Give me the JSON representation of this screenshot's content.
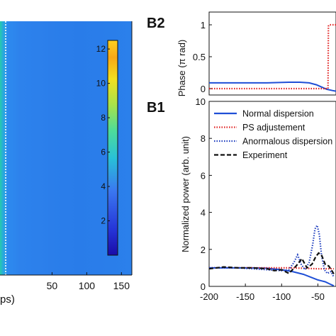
{
  "chart_data": [
    {
      "type": "heatmap",
      "panel": "A",
      "xlabel_partial": "ps)",
      "xticks": [
        50,
        100,
        150
      ],
      "xlim": [
        -25,
        165
      ],
      "colorbar": {
        "ticks": [
          2,
          4,
          6,
          8,
          10,
          12
        ],
        "range": [
          0,
          12.5
        ],
        "colormap": "jet"
      },
      "marker_line": "white dotted vertical line near x = 0 (partially visible)"
    },
    {
      "type": "line",
      "panel": "B2",
      "panel_label": "B2",
      "ylabel": "Phase (π rad)",
      "yticks": [
        0,
        0.5,
        1
      ],
      "ylim": [
        -0.1,
        1.2
      ],
      "xlim": [
        -200,
        -25
      ],
      "series": [
        {
          "name": "Normal dispersion",
          "color": "#1f4fd6",
          "style": "solid",
          "points": [
            [
              -200,
              0.09
            ],
            [
              -160,
              0.09
            ],
            [
              -120,
              0.09
            ],
            [
              -90,
              0.1
            ],
            [
              -75,
              0.1
            ],
            [
              -62,
              0.09
            ],
            [
              -52,
              0.06
            ],
            [
              -44,
              0.02
            ],
            [
              -38,
              -0.01
            ],
            [
              -30,
              -0.03
            ],
            [
              -25,
              -0.04
            ]
          ]
        },
        {
          "name": "PS adjustement",
          "color": "#e02020",
          "style": "dotted",
          "points": [
            [
              -200,
              0.0
            ],
            [
              -120,
              0.0
            ],
            [
              -50,
              0.0
            ],
            [
              -36,
              0.0
            ],
            [
              -35.5,
              0.98
            ],
            [
              -34,
              1.0
            ],
            [
              -25,
              1.0
            ]
          ]
        }
      ]
    },
    {
      "type": "line",
      "panel": "B1",
      "panel_label": "B1",
      "ylabel": "Normalized power (arb. unit)",
      "xticks": [
        -200,
        -150,
        -100,
        -50
      ],
      "yticks": [
        0,
        2,
        4,
        6,
        8,
        10
      ],
      "xlim": [
        -200,
        -25
      ],
      "ylim": [
        0,
        10
      ],
      "legend": [
        "Normal dispersion",
        "PS adjustement",
        "Anormalous dispersion",
        "Experiment"
      ],
      "series": [
        {
          "name": "Normal dispersion",
          "color": "#1f4fd6",
          "style": "solid",
          "points": [
            [
              -200,
              1.0
            ],
            [
              -170,
              1.0
            ],
            [
              -140,
              1.0
            ],
            [
              -120,
              0.98
            ],
            [
              -100,
              0.9
            ],
            [
              -85,
              0.8
            ],
            [
              -70,
              0.65
            ],
            [
              -60,
              0.5
            ],
            [
              -50,
              0.35
            ],
            [
              -45,
              0.3
            ],
            [
              -40,
              0.25
            ],
            [
              -33,
              0.12
            ],
            [
              -28,
              0.03
            ]
          ]
        },
        {
          "name": "PS adjustement",
          "color": "#e02020",
          "style": "dotted",
          "points": [
            [
              -200,
              1.0
            ],
            [
              -170,
              1.0
            ],
            [
              -140,
              1.0
            ],
            [
              -110,
              1.0
            ],
            [
              -90,
              1.0
            ],
            [
              -70,
              0.98
            ],
            [
              -50,
              0.95
            ],
            [
              -35,
              0.95
            ],
            [
              -28,
              0.95
            ]
          ]
        },
        {
          "name": "Anormalous dispersion",
          "color": "#1f3fbf",
          "style": "dotted",
          "points": [
            [
              -200,
              1.0
            ],
            [
              -180,
              1.0
            ],
            [
              -160,
              1.0
            ],
            [
              -140,
              0.95
            ],
            [
              -120,
              0.9
            ],
            [
              -100,
              0.85
            ],
            [
              -90,
              0.9
            ],
            [
              -83,
              1.3
            ],
            [
              -78,
              1.7
            ],
            [
              -73,
              1.2
            ],
            [
              -68,
              0.9
            ],
            [
              -62,
              1.3
            ],
            [
              -57,
              2.3
            ],
            [
              -54,
              3.1
            ],
            [
              -51,
              3.3
            ],
            [
              -48,
              2.8
            ],
            [
              -45,
              1.7
            ],
            [
              -41,
              0.9
            ],
            [
              -37,
              0.7
            ],
            [
              -32,
              0.8
            ],
            [
              -28,
              0.5
            ]
          ]
        },
        {
          "name": "Experiment",
          "color": "#111111",
          "style": "dashed",
          "points": [
            [
              -200,
              0.95
            ],
            [
              -180,
              1.05
            ],
            [
              -160,
              1.0
            ],
            [
              -140,
              1.0
            ],
            [
              -120,
              0.95
            ],
            [
              -110,
              0.85
            ],
            [
              -100,
              0.9
            ],
            [
              -90,
              0.7
            ],
            [
              -80,
              1.1
            ],
            [
              -72,
              1.5
            ],
            [
              -65,
              1.0
            ],
            [
              -58,
              1.2
            ],
            [
              -53,
              1.6
            ],
            [
              -49,
              1.8
            ],
            [
              -45,
              1.7
            ],
            [
              -40,
              1.2
            ],
            [
              -35,
              1.1
            ],
            [
              -30,
              0.8
            ],
            [
              -27,
              0.6
            ]
          ]
        }
      ]
    }
  ]
}
